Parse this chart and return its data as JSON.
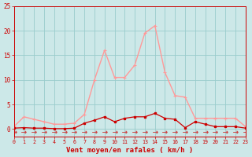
{
  "x": [
    0,
    1,
    2,
    3,
    4,
    5,
    6,
    7,
    8,
    9,
    10,
    11,
    12,
    13,
    14,
    15,
    16,
    17,
    18,
    19,
    20,
    21,
    22,
    23
  ],
  "line1_y": [
    0.5,
    2.5,
    2.0,
    1.5,
    1.0,
    1.0,
    1.2,
    3.0,
    10.0,
    16.0,
    10.5,
    10.5,
    13.0,
    19.5,
    21.0,
    11.5,
    6.8,
    6.5,
    2.2,
    2.2,
    2.2,
    2.2,
    2.2,
    0.5
  ],
  "line2_y": [
    0.2,
    0.3,
    0.2,
    0.2,
    0.1,
    0.1,
    0.2,
    1.2,
    1.8,
    2.5,
    1.5,
    2.2,
    2.5,
    2.5,
    3.2,
    2.2,
    2.0,
    0.3,
    1.5,
    1.0,
    0.5,
    0.5,
    0.5,
    0.2
  ],
  "line3_y": [
    -0.5,
    -0.5,
    -0.5,
    -0.5,
    -0.5,
    -0.5,
    -0.5,
    -0.5,
    -0.5,
    -0.5,
    -0.5,
    -0.5,
    -0.5,
    -0.5,
    -0.5,
    -0.5,
    -0.5,
    -0.5,
    -0.5,
    -0.5,
    -0.5,
    -0.5,
    -0.5,
    -0.5
  ],
  "line1_color": "#ff9999",
  "line2_color": "#cc0000",
  "line3_color": "#cc3333",
  "bg_color": "#cce8e8",
  "grid_color": "#99cccc",
  "xlabel": "Vent moyen/en rafales ( km/h )",
  "xlabel_color": "#cc0000",
  "tick_color": "#cc0000",
  "ylim_min": -1.5,
  "ylim_max": 25,
  "xlim_min": 0,
  "xlim_max": 23,
  "yticks": [
    0,
    5,
    10,
    15,
    20,
    25
  ],
  "xticks": [
    0,
    1,
    2,
    3,
    4,
    5,
    6,
    7,
    8,
    9,
    10,
    11,
    12,
    13,
    14,
    15,
    16,
    17,
    18,
    19,
    20,
    21,
    22,
    23
  ]
}
